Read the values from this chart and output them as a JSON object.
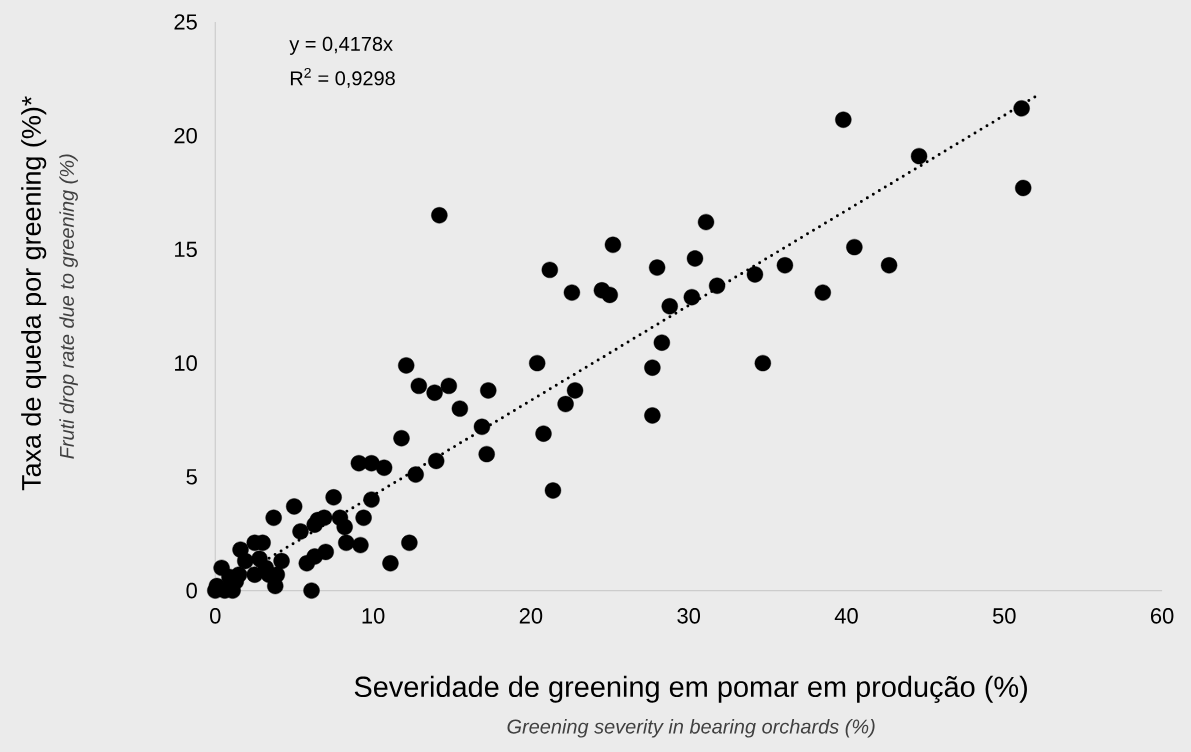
{
  "chart_data": {
    "type": "scatter",
    "xlabel": "Severidade de greening em pomar em produção (%)",
    "ylabel": "Taxa de queda por greening (%)*",
    "annotations": [
      "y = 0,4178x",
      "R$^{2}$ = 0,9298",
      "*Fruti drop rate due to greening (%)*",
      "*Greening severity in bearing orchards (%)*"
    ],
    "xlim": [
      0,
      60
    ],
    "ylim": [
      0,
      25
    ],
    "xticks": [
      0,
      10,
      20,
      30,
      40,
      50,
      60
    ],
    "yticks": [
      0,
      5,
      10,
      15,
      20,
      25
    ],
    "grid": false,
    "marker": "circle",
    "series": [
      {
        "color": "#000000",
        "x": [
          51.1,
          51.2,
          39.8,
          44.6,
          40.5,
          42.7,
          38.5,
          36.1,
          34.2,
          34.7,
          31.8,
          31.1,
          30.4,
          30.2,
          28.8,
          28.3,
          27.7,
          27.7,
          28.0,
          25.2,
          24.5,
          25.0,
          22.6,
          21.2,
          22.8,
          22.2,
          21.4,
          20.4,
          20.8,
          17.3,
          16.9,
          17.2,
          15.5,
          14.8,
          14.2,
          13.9,
          14.0,
          12.9,
          12.1,
          11.8,
          12.7,
          12.3,
          10.7,
          11.1,
          9.1,
          9.9,
          9.9,
          9.4,
          9.2,
          7.5,
          5.0,
          3.7,
          5.4,
          6.5,
          6.9,
          6.3,
          7.9,
          8.2,
          8.3,
          6.1,
          7.0,
          6.3,
          5.8,
          1.6,
          0.4,
          3.0,
          2.5,
          1.9,
          4.2,
          3.9,
          3.8,
          3.2,
          2.5,
          3.4,
          2.8,
          1.3,
          1.5,
          0.9,
          0.1,
          0.0,
          0.6,
          1.1
        ],
        "values": [
          21.2,
          17.7,
          20.7,
          19.1,
          15.1,
          14.3,
          13.1,
          14.3,
          13.9,
          10.0,
          13.4,
          16.2,
          14.6,
          12.9,
          12.5,
          10.9,
          9.8,
          7.7,
          14.2,
          15.2,
          13.2,
          13.0,
          13.1,
          14.1,
          8.8,
          8.2,
          4.4,
          10.0,
          6.9,
          8.8,
          7.2,
          6.0,
          8.0,
          9.0,
          16.5,
          8.7,
          5.7,
          9.0,
          9.9,
          6.7,
          5.1,
          2.1,
          5.4,
          1.2,
          5.6,
          5.6,
          4.0,
          3.2,
          2.0,
          4.1,
          3.7,
          3.2,
          2.6,
          3.1,
          3.2,
          2.9,
          3.2,
          2.8,
          2.1,
          0.0,
          1.7,
          1.5,
          1.2,
          1.8,
          1.0,
          2.1,
          2.1,
          1.3,
          1.3,
          0.7,
          0.2,
          1.0,
          0.7,
          0.7,
          1.4,
          0.4,
          0.7,
          0.6,
          0.2,
          0.0,
          0.0,
          0.0
        ]
      },
      {
        "type": "line",
        "color": "#000000",
        "line_style": "dotted",
        "marker": "none",
        "x": [
          0,
          52
        ],
        "values": [
          0,
          21.73
        ]
      }
    ]
  }
}
